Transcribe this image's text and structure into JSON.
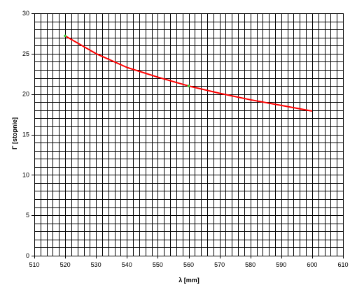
{
  "chart_data": {
    "type": "line",
    "title": "",
    "xlabel": "λ [mm]",
    "ylabel": "Γ [stopnie]",
    "xlim": [
      510,
      610
    ],
    "ylim": [
      0,
      30
    ],
    "x_major_ticks": [
      510,
      520,
      530,
      540,
      550,
      560,
      570,
      580,
      590,
      600,
      610
    ],
    "y_major_ticks": [
      0,
      5,
      10,
      15,
      20,
      25,
      30
    ],
    "x_tick_labels": [
      "510",
      "520",
      "530",
      "540",
      "550",
      "560",
      "570",
      "580",
      "590",
      "600",
      "610"
    ],
    "y_tick_labels": [
      "0",
      "5",
      "10",
      "15",
      "20",
      "25",
      "30"
    ],
    "grid": true,
    "grid_step_x": 2,
    "grid_step_y": 1,
    "legend": "none",
    "colors": {
      "line": "#ff0000",
      "markers": "#33cc33",
      "grid": "#000000"
    },
    "series": [
      {
        "x": [
          520,
          530,
          540,
          550,
          560,
          570,
          580,
          590,
          600
        ],
        "y": [
          27.2,
          25.0,
          23.3,
          22.1,
          21.0,
          20.1,
          19.3,
          18.6,
          17.9
        ]
      }
    ],
    "highlighted_points": [
      {
        "x": 520,
        "y": 27.2
      },
      {
        "x": 560,
        "y": 21.0
      }
    ]
  }
}
